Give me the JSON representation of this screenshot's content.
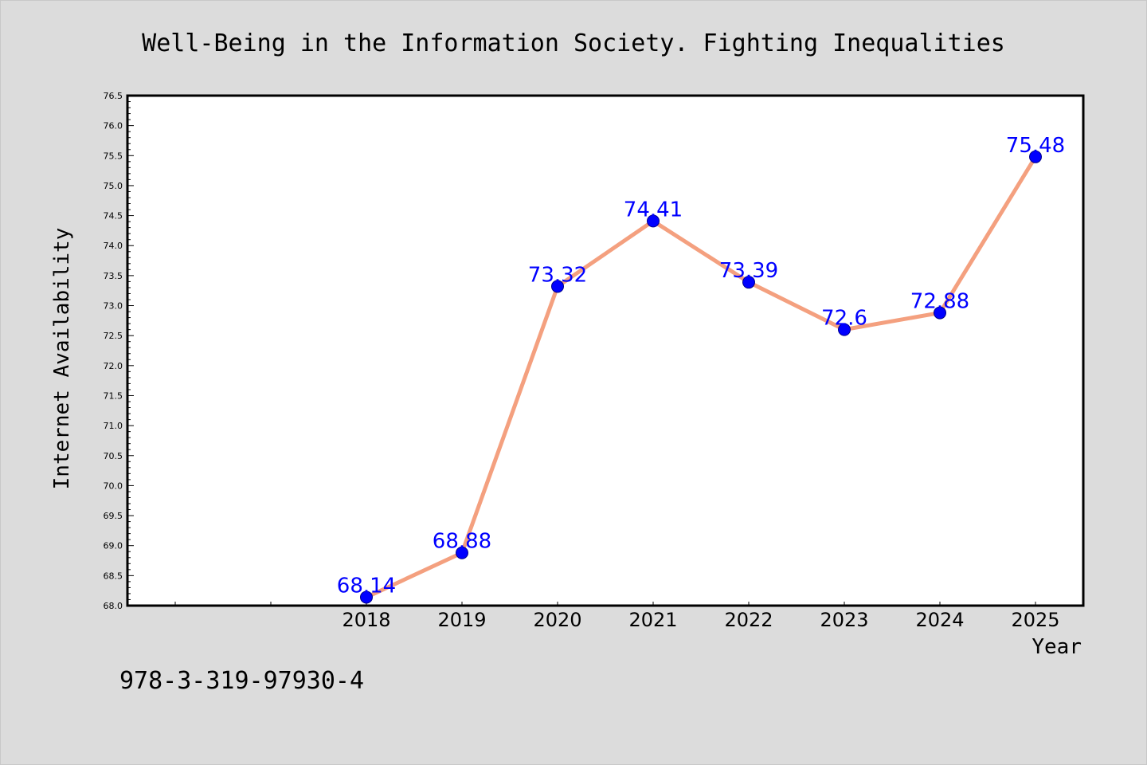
{
  "chart_data": {
    "type": "line",
    "title": "Well-Being in the Information Society. Fighting Inequalities",
    "xlabel": "Year",
    "ylabel": "Internet Availability",
    "x": [
      "2018",
      "2019",
      "2020",
      "2021",
      "2022",
      "2023",
      "2024",
      "2025"
    ],
    "series": [
      {
        "values": [
          68.14,
          68.88,
          73.32,
          74.41,
          73.39,
          72.6,
          72.88,
          75.48
        ]
      }
    ],
    "data_labels": [
      "68.14",
      "68.88",
      "73.32",
      "74.41",
      "73.39",
      "72.6",
      "72.88",
      "75.48"
    ],
    "ylim": [
      68.0,
      76.5
    ],
    "xlim": [
      2015.5,
      2025.5
    ],
    "y_tick_labels": [
      "68.0",
      "68.5",
      "69.0",
      "69.5",
      "70.0",
      "70.5",
      "71.0",
      "71.5",
      "72.0",
      "72.5",
      "73.0",
      "73.5",
      "74.0",
      "74.5",
      "75.0",
      "75.5",
      "76.0",
      "76.5"
    ],
    "grid": false,
    "legend": "none",
    "colors": {
      "line": "#f4a07f",
      "marker": "#0000ff",
      "data_label": "#0000ff",
      "background": "#dcdcdc",
      "plot_area": "#ffffff"
    }
  },
  "footer": {
    "isbn": "978-3-319-97930-4"
  }
}
